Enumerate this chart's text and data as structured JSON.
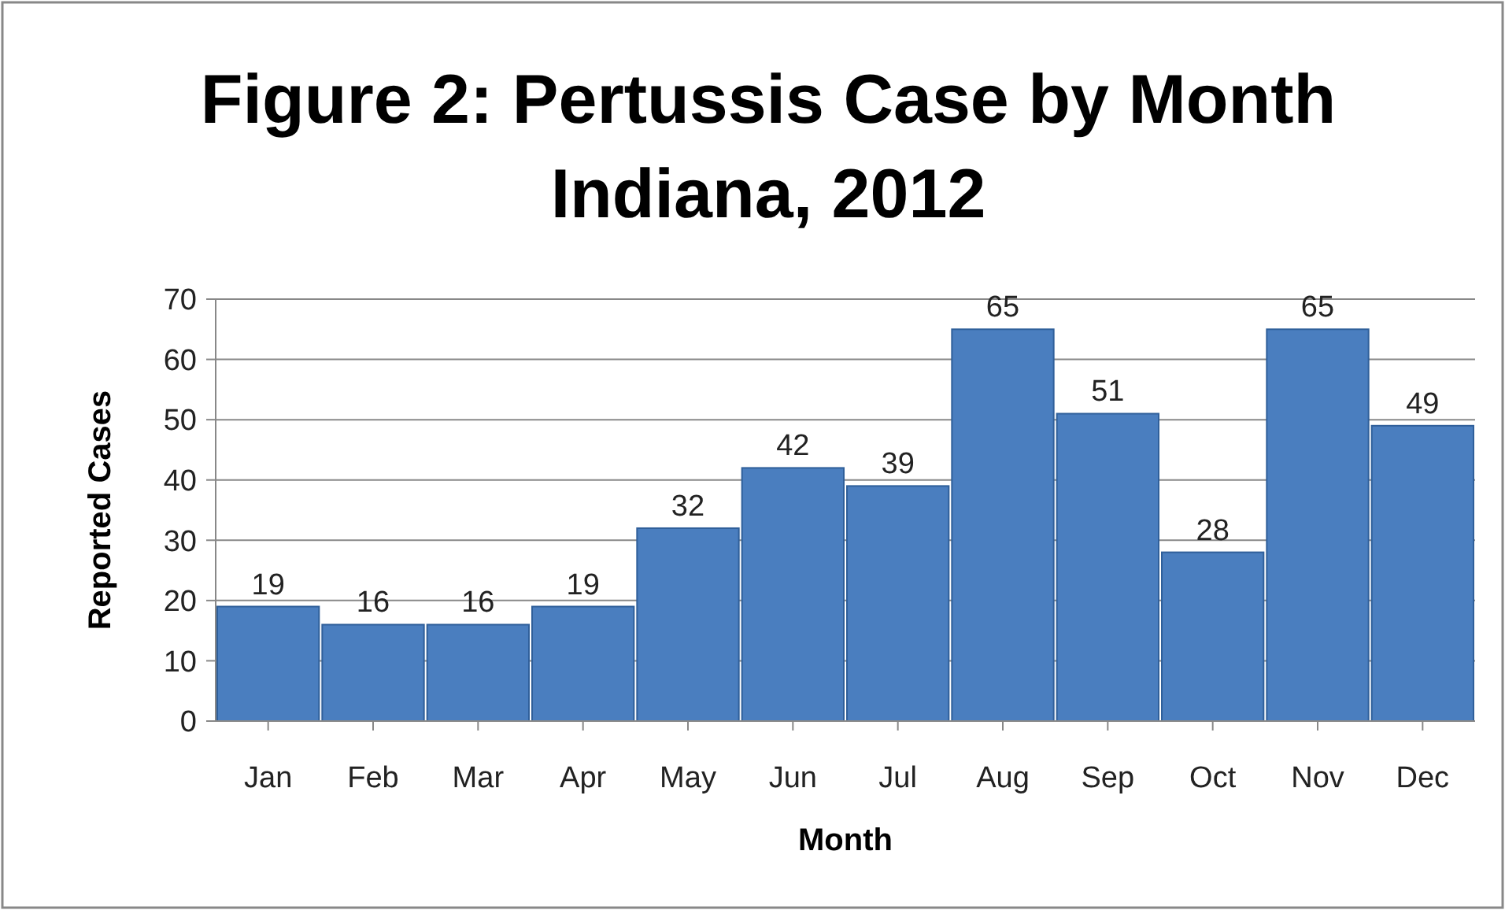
{
  "chart_data": {
    "type": "bar",
    "title": "Figure 2: Pertussis Case by Month Indiana, 2012",
    "xlabel": "Month",
    "ylabel": "Reported Cases",
    "categories": [
      "Jan",
      "Feb",
      "Mar",
      "Apr",
      "May",
      "Jun",
      "Jul",
      "Aug",
      "Sep",
      "Oct",
      "Nov",
      "Dec"
    ],
    "values": [
      19,
      16,
      16,
      19,
      32,
      42,
      39,
      65,
      51,
      28,
      65,
      49
    ],
    "color": "#4a7ebf",
    "ylim": [
      0,
      70
    ],
    "yticks": [
      0,
      10,
      20,
      30,
      40,
      50,
      60,
      70
    ],
    "grid": "y",
    "data_labels": true
  }
}
